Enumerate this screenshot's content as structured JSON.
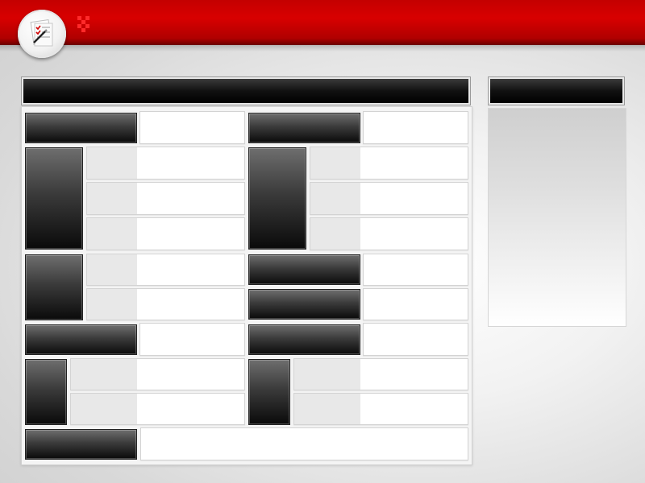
{
  "slide": {
    "theme_colors": {
      "accent": "#c40000",
      "dark": "#111111",
      "light": "#ffffff"
    },
    "logo": {
      "icon": "checklist-icon"
    },
    "content_text": []
  }
}
